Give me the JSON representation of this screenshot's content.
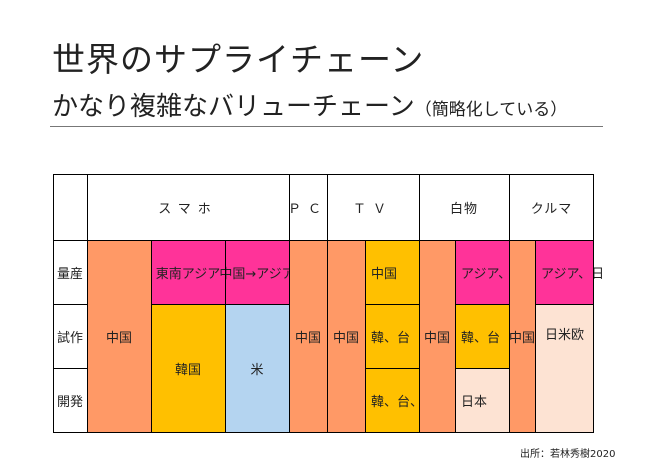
{
  "title": {
    "line1": "世界のサプライチェーン",
    "line2": "かなり複雑なバリューチェーン",
    "line2_note": "（簡略化している）"
  },
  "table": {
    "columns": [
      "スマホ",
      "ＰＣ",
      "ＴＶ",
      "白物",
      "クルマ"
    ],
    "rows": [
      "量産",
      "試作",
      "開発"
    ],
    "cells": {
      "smartphone_china": "中国",
      "smartphone_mass_sea": "東南アジア",
      "smartphone_mass_china_asia": "中国→アジア",
      "smartphone_korea": "韓国",
      "smartphone_us": "米",
      "pc_china": "中国",
      "tv_china": "中国",
      "tv_mass": "中国",
      "tv_proto": "韓、台",
      "tv_dev": "韓、台、日",
      "appliance_china": "中国",
      "appliance_mass": "アジア、日",
      "appliance_proto": "韓、台",
      "appliance_dev": "日本",
      "car_china": "中国",
      "car_mass": "アジア、日",
      "car_dev": "日米欧"
    }
  },
  "colors": {
    "orange": "#FF9966",
    "magenta": "#FF3399",
    "yellow": "#FFC000",
    "light_blue": "#B4D4F0",
    "peach": "#FDE3D3"
  },
  "source": "出所：若林秀樹2020"
}
